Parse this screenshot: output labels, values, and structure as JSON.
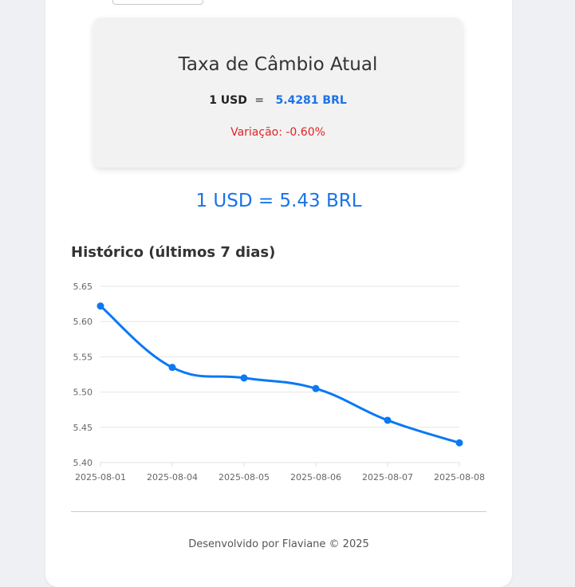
{
  "rate_card": {
    "title": "Taxa de Câmbio Atual",
    "base": "1 USD",
    "equals": "=",
    "value": "5.4281 BRL",
    "variation": "Variação: -0.60%"
  },
  "conversion": {
    "text": "1 USD = 5.43 BRL"
  },
  "history": {
    "title": "Histórico (últimos 7 dias)"
  },
  "footer": {
    "text": "Desenvolvido por Flaviane © 2025"
  },
  "colors": {
    "accent": "#1a73e8",
    "negative": "#e02424",
    "line": "#0b78f4"
  },
  "chart_data": {
    "type": "line",
    "categories": [
      "2025-08-01",
      "2025-08-04",
      "2025-08-05",
      "2025-08-06",
      "2025-08-07",
      "2025-08-08"
    ],
    "series": [
      {
        "values": [
          5.622,
          5.535,
          5.52,
          5.505,
          5.46,
          5.428
        ]
      }
    ],
    "yticks": [
      "5.40",
      "5.45",
      "5.50",
      "5.55",
      "5.60",
      "5.65"
    ],
    "ylim": [
      5.4,
      5.65
    ],
    "grid": true,
    "legend": "none"
  }
}
